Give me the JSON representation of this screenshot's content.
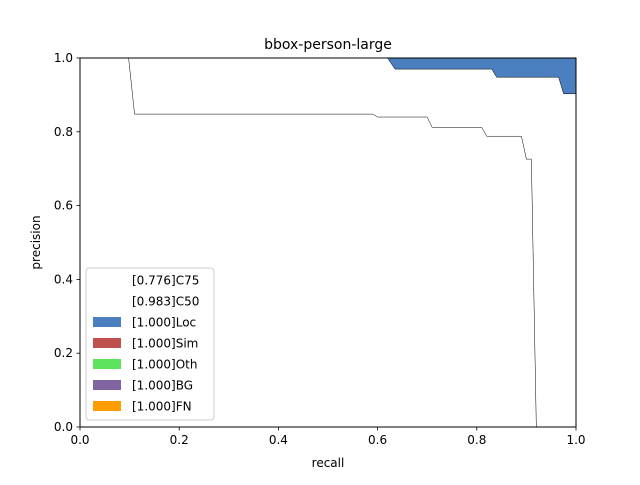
{
  "chart_data": {
    "type": "area",
    "title": "bbox-person-large",
    "xlabel": "recall",
    "ylabel": "precision",
    "xlim": [
      0.0,
      1.0
    ],
    "ylim": [
      0.0,
      1.0
    ],
    "x_ticks": [
      "0.0",
      "0.2",
      "0.4",
      "0.6",
      "0.8",
      "1.0"
    ],
    "y_ticks": [
      "0.0",
      "0.2",
      "0.4",
      "0.6",
      "0.8",
      "1.0"
    ],
    "grid": false,
    "legend_position": "lower-left",
    "series": [
      {
        "name": "[0.776]C75",
        "color": "#ffffff",
        "x": [
          0.0,
          0.098,
          0.11,
          0.59,
          0.6,
          0.7,
          0.71,
          0.81,
          0.82,
          0.89,
          0.9,
          0.91,
          0.92,
          0.921,
          1.0
        ],
        "y": [
          1.0,
          1.0,
          0.848,
          0.848,
          0.84,
          0.84,
          0.812,
          0.812,
          0.788,
          0.788,
          0.726,
          0.726,
          0.0,
          0.0,
          0.0
        ]
      },
      {
        "name": "[0.983]C50",
        "color": "#ffffff",
        "x": [
          0.0,
          0.62,
          0.635,
          0.83,
          0.84,
          0.965,
          0.975,
          1.0
        ],
        "y": [
          1.0,
          1.0,
          0.97,
          0.97,
          0.948,
          0.948,
          0.903,
          0.903
        ]
      },
      {
        "name": "[1.000]Loc",
        "color": "#4c7fbf",
        "x": [
          0.0,
          1.0
        ],
        "y": [
          1.0,
          1.0
        ]
      },
      {
        "name": "[1.000]Sim",
        "color": "#c0504d",
        "x": [
          0.0,
          1.0
        ],
        "y": [
          1.0,
          1.0
        ]
      },
      {
        "name": "[1.000]Oth",
        "color": "#5ee35e",
        "x": [
          0.0,
          1.0
        ],
        "y": [
          1.0,
          1.0
        ]
      },
      {
        "name": "[1.000]BG",
        "color": "#8064a2",
        "x": [
          0.0,
          1.0
        ],
        "y": [
          1.0,
          1.0
        ]
      },
      {
        "name": "[1.000]FN",
        "color": "#ff9c00",
        "x": [
          0.0,
          1.0
        ],
        "y": [
          1.0,
          1.0
        ]
      }
    ]
  }
}
